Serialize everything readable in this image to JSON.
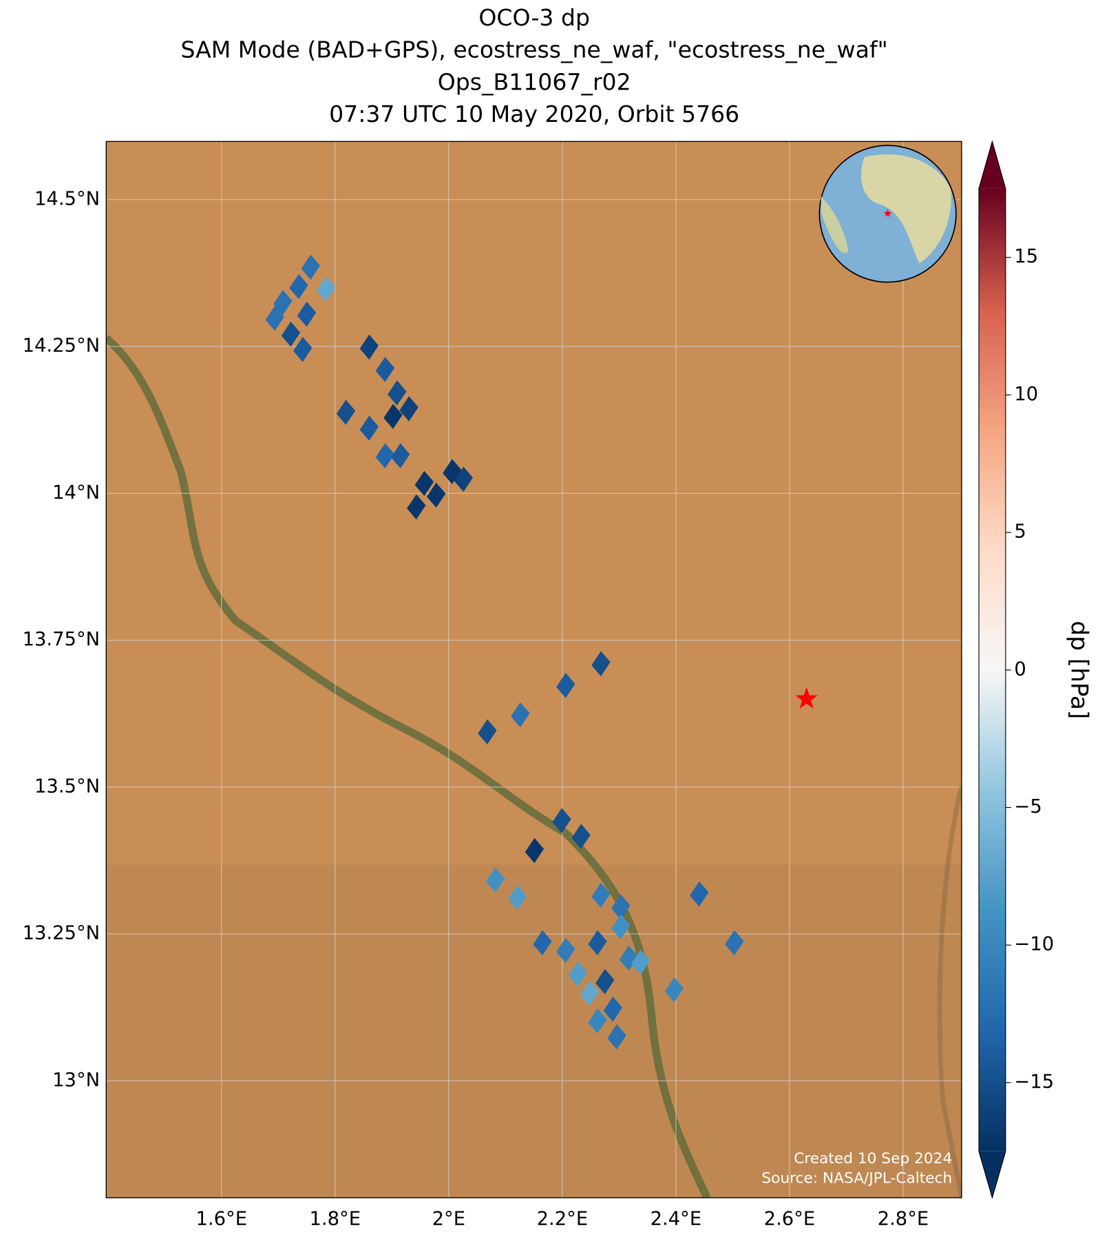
{
  "chart_data": {
    "type": "map",
    "title": [
      "OCO-3 dp",
      "SAM Mode (BAD+GPS), ecostress_ne_waf, \"ecostress_ne_waf\"",
      "Ops_B11067_r02",
      "07:37 UTC 10 May 2020, Orbit 5766"
    ],
    "xlim": [
      1.397,
      2.903
    ],
    "ylim": [
      12.801,
      14.599
    ],
    "xticks": [
      {
        "value": 1.6,
        "label": "1.6°E"
      },
      {
        "value": 1.8,
        "label": "1.8°E"
      },
      {
        "value": 2.0,
        "label": "2°E"
      },
      {
        "value": 2.2,
        "label": "2.2°E"
      },
      {
        "value": 2.4,
        "label": "2.4°E"
      },
      {
        "value": 2.6,
        "label": "2.6°E"
      },
      {
        "value": 2.8,
        "label": "2.8°E"
      }
    ],
    "yticks": [
      {
        "value": 13.0,
        "label": "13°N"
      },
      {
        "value": 13.25,
        "label": "13.25°N"
      },
      {
        "value": 13.5,
        "label": "13.5°N"
      },
      {
        "value": 13.75,
        "label": "13.75°N"
      },
      {
        "value": 14.0,
        "label": "14°N"
      },
      {
        "value": 14.25,
        "label": "14.25°N"
      },
      {
        "value": 14.5,
        "label": "14.5°N"
      }
    ],
    "grid": true,
    "colormap": "RdBu_r",
    "clim": [
      -17.5,
      17.5
    ],
    "colorbar_label": "dp [hPa]",
    "colorbar_ticks": [
      {
        "value": -15,
        "label": "−15"
      },
      {
        "value": -10,
        "label": "−10"
      },
      {
        "value": -5,
        "label": "−5"
      },
      0,
      5,
      10,
      15
    ],
    "lon": [
      1.757,
      1.736,
      1.708,
      1.784,
      1.694,
      1.722,
      1.743,
      1.75,
      1.86,
      1.888,
      1.909,
      1.819,
      1.86,
      1.902,
      1.93,
      1.888,
      1.915,
      1.957,
      1.943,
      2.006,
      2.026,
      1.978,
      2.268,
      2.206,
      2.126,
      2.068,
      2.199,
      2.233,
      2.151,
      2.082,
      2.121,
      2.441,
      2.503,
      2.268,
      2.303,
      2.397,
      2.165,
      2.206,
      2.227,
      2.248,
      2.275,
      2.289,
      2.296,
      2.262,
      2.317,
      2.303,
      2.338,
      2.262
    ],
    "lat": [
      14.385,
      14.352,
      14.325,
      14.348,
      14.298,
      14.271,
      14.245,
      14.305,
      14.249,
      14.211,
      14.171,
      14.138,
      14.111,
      14.131,
      14.144,
      14.064,
      14.064,
      14.017,
      13.977,
      14.037,
      14.024,
      13.997,
      13.71,
      13.673,
      13.623,
      13.594,
      13.443,
      13.416,
      13.392,
      13.342,
      13.312,
      13.318,
      13.235,
      13.316,
      13.296,
      13.155,
      13.235,
      13.222,
      13.182,
      13.149,
      13.169,
      13.122,
      13.075,
      13.102,
      13.209,
      13.262,
      13.202,
      13.235
    ],
    "values": [
      -12,
      -13,
      -12,
      -7,
      -12,
      -15,
      -14,
      -14,
      -16,
      -14,
      -15,
      -15,
      -14,
      -17,
      -16,
      -13,
      -14,
      -17,
      -17,
      -17,
      -16,
      -17,
      -15,
      -14,
      -12,
      -15,
      -15,
      -15,
      -17,
      -9,
      -8,
      -13,
      -12,
      -11,
      -12,
      -10,
      -13,
      -11,
      -8,
      -7,
      -15,
      -13,
      -12,
      -10,
      -11,
      -9,
      -8,
      -14
    ],
    "target": {
      "lon": 2.63,
      "lat": 13.65,
      "color": "#ff0000"
    },
    "footer": [
      "Created 10 Sep 2024",
      "Source: NASA/JPL-Caltech"
    ]
  }
}
